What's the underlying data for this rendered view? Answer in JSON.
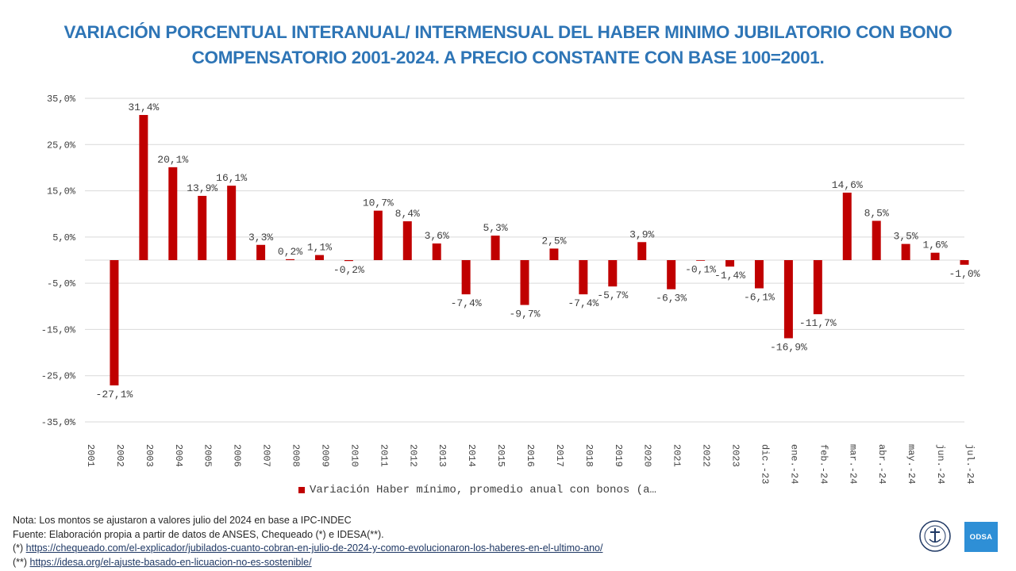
{
  "title": {
    "line1": "VARIACIÓN PORCENTUAL INTERANUAL/ INTERMENSUAL DEL HABER MINIMO JUBILATORIO CON BONO",
    "line2": "COMPENSATORIO 2001-2024.  A PRECIO CONSTANTE CON BASE 100=2001."
  },
  "chart_data": {
    "type": "bar",
    "title": "VARIACIÓN PORCENTUAL INTERANUAL/ INTERMENSUAL DEL HABER MINIMO JUBILATORIO CON BONO COMPENSATORIO 2001-2024. A PRECIO CONSTANTE CON BASE 100=2001.",
    "categories": [
      "2001",
      "2002",
      "2003",
      "2004",
      "2005",
      "2006",
      "2007",
      "2008",
      "2009",
      "2010",
      "2011",
      "2012",
      "2013",
      "2014",
      "2015",
      "2016",
      "2017",
      "2018",
      "2019",
      "2020",
      "2021",
      "2022",
      "2023",
      "dic.-23",
      "ene.-24",
      "feb.-24",
      "mar.-24",
      "abr.-24",
      "may.-24",
      "jun.-24",
      "jul.-24"
    ],
    "values": [
      null,
      -27.1,
      31.4,
      20.1,
      13.9,
      16.1,
      3.3,
      0.2,
      1.1,
      -0.2,
      10.7,
      8.4,
      3.6,
      -7.4,
      5.3,
      -9.7,
      2.5,
      -7.4,
      -5.7,
      3.9,
      -6.3,
      -0.1,
      -1.4,
      -6.1,
      -16.9,
      -11.7,
      14.6,
      8.5,
      3.5,
      1.6,
      -1.0
    ],
    "data_labels": [
      "",
      "-27,1%",
      "31,4%",
      "20,1%",
      "13,9%",
      "16,1%",
      "3,3%",
      "0,2%",
      "1,1%",
      "-0,2%",
      "10,7%",
      "8,4%",
      "3,6%",
      "-7,4%",
      "5,3%",
      "-9,7%",
      "2,5%",
      "-7,4%",
      "-5,7%",
      "3,9%",
      "-6,3%",
      "-0,1%",
      "-1,4%",
      "-6,1%",
      "-16,9%",
      "-11,7%",
      "14,6%",
      "8,5%",
      "3,5%",
      "1,6%",
      "-1,0%"
    ],
    "yticks": [
      35,
      25,
      15,
      5,
      -5,
      -15,
      -25,
      -35
    ],
    "ytick_labels": [
      "35,0%",
      "25,0%",
      "15,0%",
      "5,0%",
      "-5,0%",
      "-15,0%",
      "-25,0%",
      "-35,0%"
    ],
    "ylim": [
      -35,
      35
    ],
    "xlabel": "",
    "ylabel": "",
    "grid": true,
    "legend_position": "bottom",
    "series_name": "Variación Haber mínimo, promedio anual con bonos (a…",
    "bar_color": "#c00000"
  },
  "footer": {
    "nota": "Nota: Los montos se ajustaron a valores julio del 2024  en base a IPC-INDEC",
    "fuente": "Fuente: Elaboración propia a partir de datos de ANSES, Chequeado (*) e IDESA(**).",
    "ref1_prefix": "(*) ",
    "ref1_link": "https://chequeado.com/el-explicador/jubilados-cuanto-cobran-en-julio-de-2024-y-como-evolucionaron-los-haberes-en-el-ultimo-ano/",
    "ref2_prefix": "(**) ",
    "ref2_link": "https://idesa.org/el-ajuste-basado-en-licuacion-no-es-sostenible/"
  },
  "logo": {
    "odsa_text": "ODSA"
  }
}
